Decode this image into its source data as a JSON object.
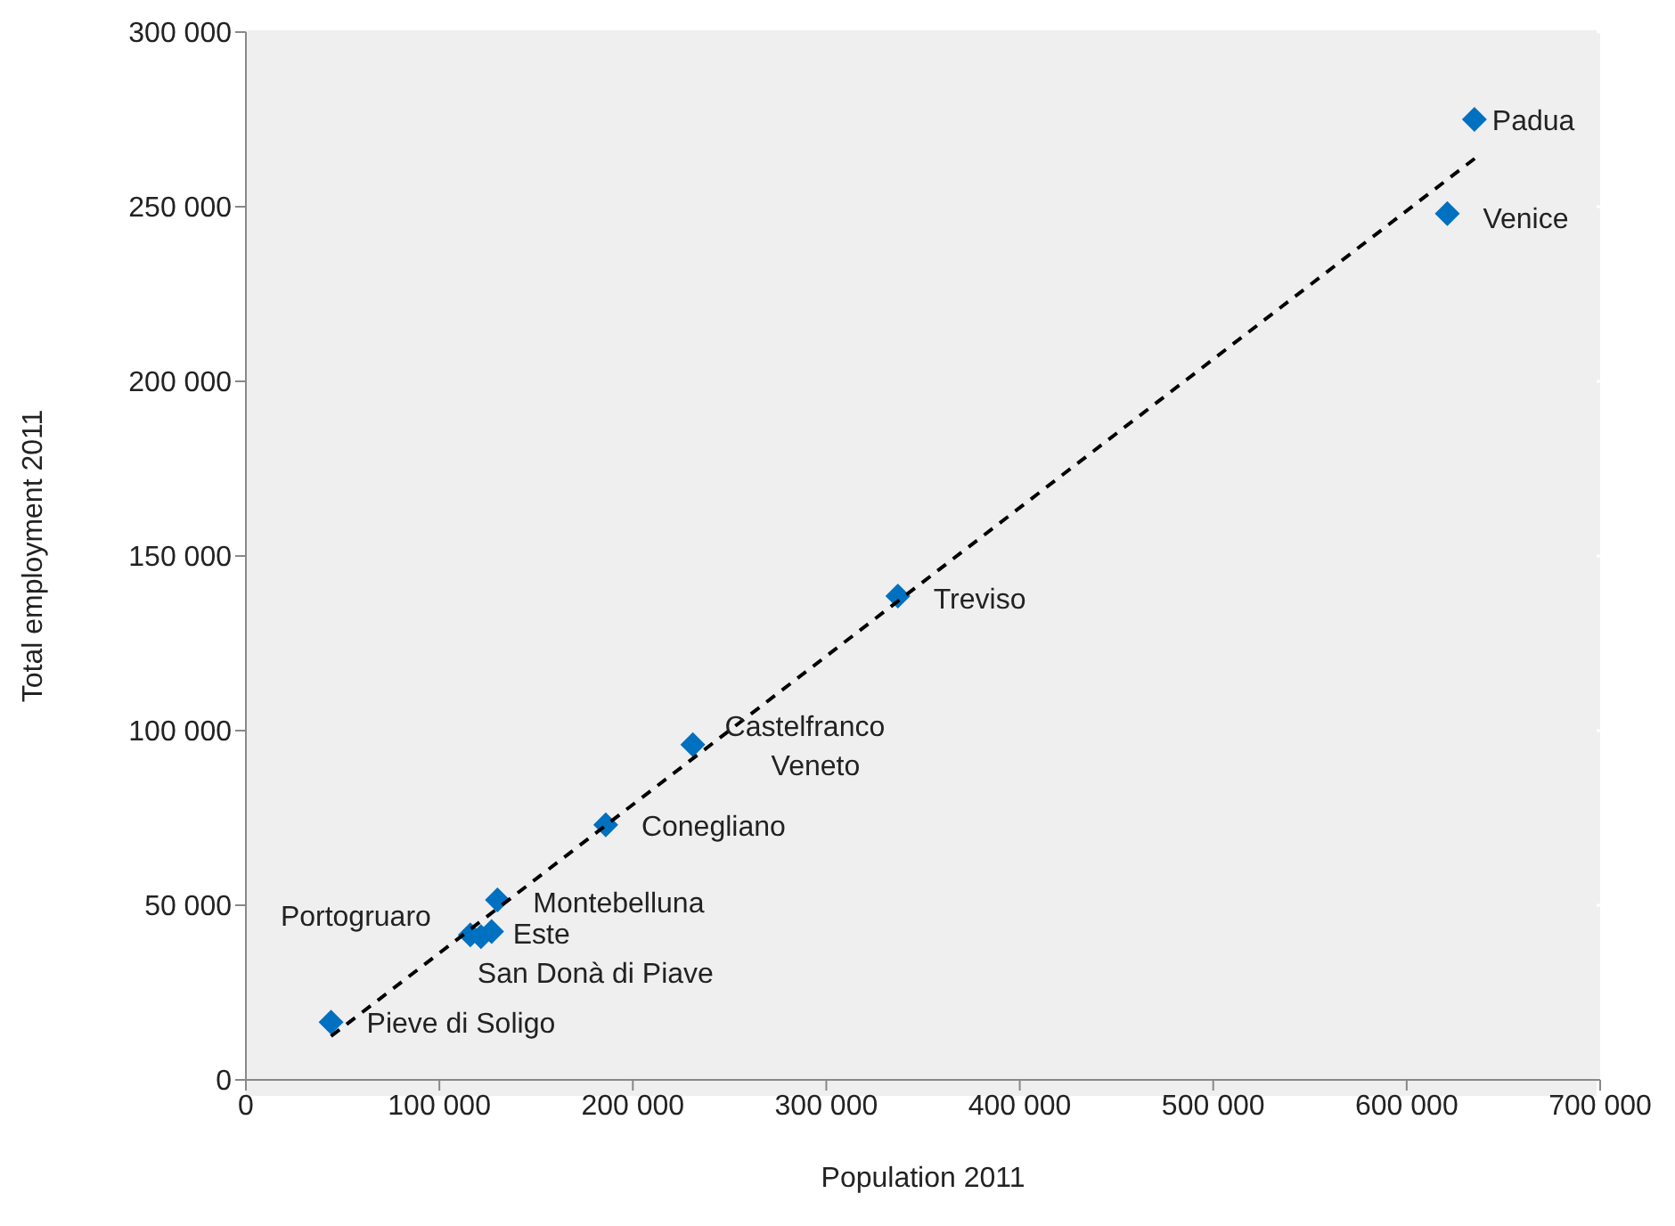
{
  "chart_data": {
    "type": "scatter",
    "xlabel": "Population 2011",
    "ylabel": "Total employment 2011",
    "xlim": [
      0,
      700000
    ],
    "xticks": [
      {
        "value": 0,
        "label": "0"
      },
      {
        "value": 100000,
        "label": "100 000"
      },
      {
        "value": 200000,
        "label": "200 000"
      },
      {
        "value": 300000,
        "label": "300 000"
      },
      {
        "value": 400000,
        "label": "400 000"
      },
      {
        "value": 500000,
        "label": "500 000"
      },
      {
        "value": 600000,
        "label": "600 000"
      },
      {
        "value": 700000,
        "label": "700 000"
      }
    ],
    "ylim": [
      0,
      300000
    ],
    "yticks": [
      {
        "value": 0,
        "label": "0"
      },
      {
        "value": 50000,
        "label": "50 000"
      },
      {
        "value": 100000,
        "label": "100 000"
      },
      {
        "value": 150000,
        "label": "150 000"
      },
      {
        "value": 200000,
        "label": "200 000"
      },
      {
        "value": 250000,
        "label": "250 000"
      },
      {
        "value": 300000,
        "label": "300 000"
      }
    ],
    "grid": "y",
    "marker": "diamond",
    "series": [
      {
        "type": "scatter",
        "color": "#0070c0",
        "x": [
          635000,
          621000,
          337000,
          231000,
          186000,
          130000,
          127000,
          121500,
          116000,
          44000
        ],
        "values": [
          275000,
          248000,
          138500,
          96000,
          73000,
          51500,
          42500,
          41000,
          41500,
          16500
        ]
      },
      {
        "type": "line",
        "color": "#000000",
        "line_style": "dashed",
        "marker": "none",
        "x": [
          44000,
          638000
        ],
        "values": [
          12500,
          265000
        ]
      }
    ],
    "annotations": [
      {
        "text": "Padua",
        "x": 635000,
        "y": 275000
      },
      {
        "text": "Venice",
        "x": 621000,
        "y": 248000
      },
      {
        "text": "Treviso",
        "x": 337000,
        "y": 138500
      },
      {
        "text": "Castelfranco Veneto",
        "x": 231000,
        "y": 96000
      },
      {
        "text": "Conegliano",
        "x": 186000,
        "y": 73000
      },
      {
        "text": "Montebelluna",
        "x": 130000,
        "y": 51500
      },
      {
        "text": "Este",
        "x": 127000,
        "y": 42500
      },
      {
        "text": "San Donà di Piave",
        "x": 121500,
        "y": 41000
      },
      {
        "text": "Portogruaro",
        "x": 116000,
        "y": 41500
      },
      {
        "text": "Pieve di Soligo",
        "x": 44000,
        "y": 16500
      }
    ]
  }
}
